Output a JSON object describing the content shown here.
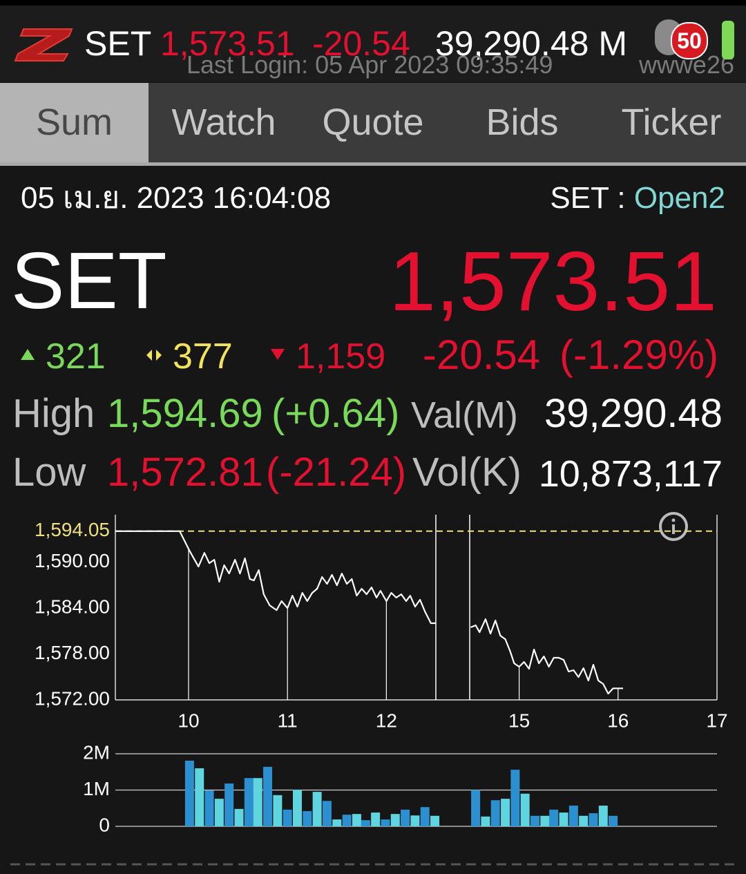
{
  "header": {
    "symbol": "SET",
    "last": "1,573.51",
    "change": "-20.54",
    "value": "39,290.48 M",
    "last_login": "Last Login: 05 Apr 2023 09:35:49",
    "user": "wwwe26",
    "badge": "50"
  },
  "tabs": [
    "Sum",
    "Watch",
    "Quote",
    "Bids",
    "Ticker"
  ],
  "summary": {
    "datetime": "05 เม.ย. 2023 16:04:08",
    "market": "SET :",
    "status": "Open2",
    "symbol": "SET",
    "last": "1,573.51",
    "advances": "321",
    "unchanged": "377",
    "declines": "1,159",
    "change": "-20.54",
    "percent_change": "(-1.29%)",
    "high_label": "High",
    "high": "1,594.69",
    "high_change": "(+0.64)",
    "val_label": "Val(M)",
    "val": "39,290.48",
    "low_label": "Low",
    "low": "1,572.81",
    "low_change": "(-21.24)",
    "vol_label": "Vol(K)",
    "vol": "10,873,117"
  },
  "chart_data": [
    {
      "type": "line",
      "color": "#ffffff",
      "x": [
        9.26,
        9.91,
        10.01,
        10.1,
        10.16,
        10.21,
        10.26,
        10.31,
        10.36,
        10.41,
        10.47,
        10.52,
        10.57,
        10.62,
        10.66,
        10.71,
        10.76,
        10.82,
        10.89,
        10.94,
        11.0,
        11.05,
        11.1,
        11.15,
        11.2,
        11.25,
        11.3,
        11.35,
        11.4,
        11.45,
        11.5,
        11.55,
        11.6,
        11.65,
        11.7,
        11.75,
        11.8,
        11.85,
        11.9,
        11.94,
        12.0,
        12.05,
        12.1,
        12.15,
        12.2,
        12.24,
        12.29,
        12.34,
        12.39,
        12.45,
        12.5,
        13.5,
        14.51,
        14.56,
        14.6,
        14.66,
        14.71,
        14.76,
        14.81,
        14.86,
        14.91,
        14.95,
        15.0,
        15.05,
        15.1,
        15.15,
        15.2,
        15.25,
        15.3,
        15.35,
        15.4,
        15.45,
        15.5,
        15.55,
        15.6,
        15.65,
        15.7,
        15.75,
        15.8,
        15.85,
        15.9,
        15.95,
        16.05
      ],
      "values": [
        1594.05,
        1594.05,
        1591.49,
        1589.42,
        1591.22,
        1589.87,
        1590.32,
        1587.43,
        1589.6,
        1588.52,
        1590.32,
        1588.52,
        1590.5,
        1587.79,
        1587.61,
        1588.97,
        1585.81,
        1584.36,
        1583.73,
        1584.91,
        1584.0,
        1585.63,
        1584.18,
        1585.99,
        1584.91,
        1585.99,
        1586.53,
        1588.06,
        1587.16,
        1588.34,
        1586.98,
        1588.52,
        1587.16,
        1587.79,
        1585.63,
        1586.53,
        1585.81,
        1586.71,
        1585.36,
        1586.26,
        1584.91,
        1585.99,
        1585.36,
        1585.81,
        1584.91,
        1585.63,
        1584.18,
        1585.09,
        1583.55,
        1582.02,
        1582.02,
        null,
        1581.48,
        1581.75,
        1580.84,
        1582.56,
        1580.66,
        1582.38,
        1580.39,
        1579.94,
        1578.32,
        1576.78,
        1576.33,
        1576.96,
        1576.06,
        1578.59,
        1576.78,
        1577.69,
        1576.33,
        1577.51,
        1577.51,
        1577.23,
        1575.7,
        1575.88,
        1574.98,
        1576.15,
        1574.53,
        1576.6,
        1574.53,
        1574.08,
        1572.81,
        1573.51,
        1573.51
      ],
      "xlim": [
        9.26,
        17
      ],
      "xbreak": [
        12.5,
        14.5
      ],
      "xticks": [
        10,
        11,
        12,
        15,
        16,
        17
      ],
      "ylim": [
        1572,
        1596.2
      ],
      "yticks": [
        {
          "value": 1572,
          "label": "1,572.00"
        },
        {
          "value": 1578,
          "label": "1,578.00"
        },
        {
          "value": 1584,
          "label": "1,584.00"
        },
        {
          "value": 1590,
          "label": "1,590.00"
        }
      ],
      "reference": {
        "value": 1594.05,
        "label": "1,594.05",
        "color": "#efe07a"
      },
      "grid": false
    },
    {
      "type": "bar",
      "colors": [
        "#2b8fd0",
        "#5fd5e0"
      ],
      "x": [
        10.01,
        10.11,
        10.21,
        10.31,
        10.41,
        10.51,
        10.61,
        10.7,
        10.8,
        10.9,
        11.0,
        11.1,
        11.2,
        11.3,
        11.4,
        11.5,
        11.6,
        11.7,
        11.79,
        11.89,
        11.99,
        12.09,
        12.19,
        12.29,
        12.39,
        12.49,
        14.56,
        14.66,
        14.76,
        14.86,
        14.96,
        15.06,
        15.16,
        15.26,
        15.35,
        15.45,
        15.55,
        15.65,
        15.75,
        15.85,
        15.95
      ],
      "values": [
        1.81,
        1.6,
        0.99,
        0.76,
        1.18,
        0.48,
        1.33,
        1.33,
        1.64,
        0.86,
        0.46,
        1.01,
        0.42,
        0.95,
        0.7,
        0.19,
        0.32,
        0.34,
        0.17,
        0.38,
        0.19,
        0.34,
        0.46,
        0.3,
        0.53,
        0.29,
        1.0,
        0.27,
        0.72,
        0.76,
        1.56,
        0.9,
        0.29,
        0.29,
        0.46,
        0.38,
        0.57,
        0.29,
        0.36,
        0.57,
        0.29
      ],
      "xlim": [
        9.26,
        17
      ],
      "xbreak": [
        12.5,
        14.5
      ],
      "ylim": [
        0,
        2
      ],
      "yticks": [
        0,
        {
          "value": 1,
          "label": "1M"
        },
        {
          "value": 2,
          "label": "2M"
        }
      ],
      "grid": true
    }
  ]
}
